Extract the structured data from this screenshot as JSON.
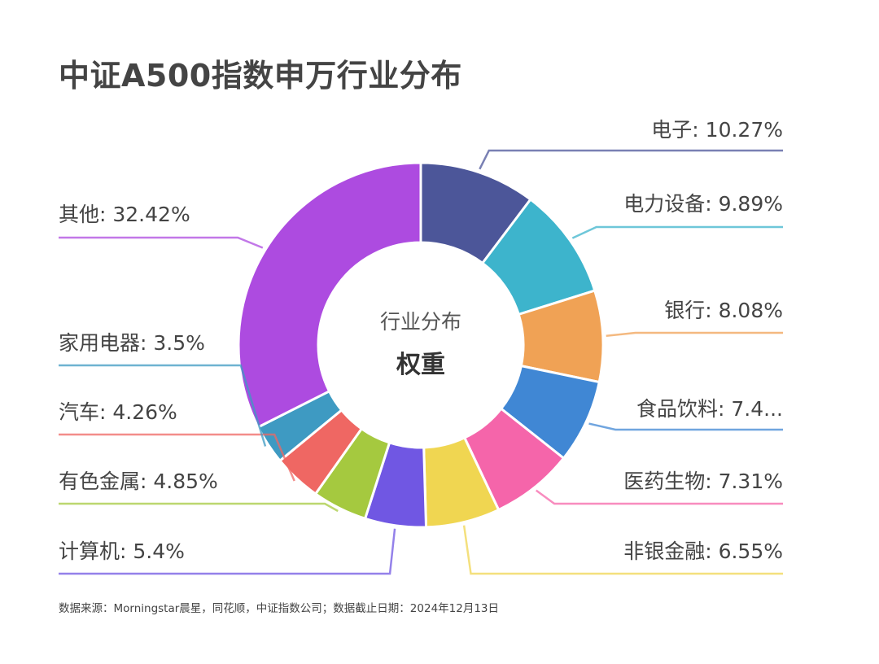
{
  "title": "中证A500指数申万行业分布",
  "source_note": "数据来源：Morningstar晨星，同花顺，中证指数公司；数据截止日期：2024年12月13日",
  "chart_data": {
    "type": "pie",
    "variant": "donut",
    "center_text": {
      "line1": "行业分布",
      "line2": "权重"
    },
    "slices": [
      {
        "name": "电子",
        "value": 10.27,
        "label": "电子: 10.27%",
        "color": "#4C5699"
      },
      {
        "name": "电力设备",
        "value": 9.89,
        "label": "电力设备: 9.89%",
        "color": "#3DB4CC"
      },
      {
        "name": "银行",
        "value": 8.08,
        "label": "银行: 8.08%",
        "color": "#F0A255"
      },
      {
        "name": "食品饮料",
        "value": 7.4,
        "label": "食品饮料: 7.4...",
        "color": "#4087D4"
      },
      {
        "name": "医药生物",
        "value": 7.31,
        "label": "医药生物: 7.31%",
        "color": "#F565AA"
      },
      {
        "name": "非银金融",
        "value": 6.55,
        "label": "非银金融: 6.55%",
        "color": "#F0D651"
      },
      {
        "name": "计算机",
        "value": 5.4,
        "label": "计算机: 5.4%",
        "color": "#7057E3"
      },
      {
        "name": "有色金属",
        "value": 4.85,
        "label": "有色金属: 4.85%",
        "color": "#A5C93F"
      },
      {
        "name": "汽车",
        "value": 4.26,
        "label": "汽车: 4.26%",
        "color": "#EF6763"
      },
      {
        "name": "家用电器",
        "value": 3.5,
        "label": "家用电器: 3.5%",
        "color": "#3E9AC2"
      },
      {
        "name": "其他",
        "value": 32.42,
        "label": "其他: 32.42%",
        "color": "#AD4BE0"
      }
    ],
    "start_angle": "12 o'clock",
    "direction": "clockwise",
    "legend": "none",
    "label_placement": "outside with leader lines"
  }
}
